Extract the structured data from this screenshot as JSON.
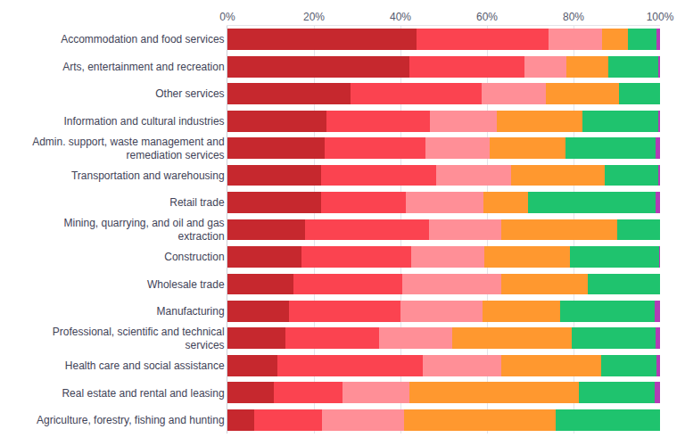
{
  "chart_data": {
    "type": "bar",
    "orientation": "horizontal",
    "stacked": true,
    "grid": true,
    "categories": [
      "Accommodation and food services",
      "Arts, entertainment and recreation",
      "Other services",
      "Information and cultural industries",
      "Admin. support, waste management and remediation services",
      "Transportation and warehousing",
      "Retail trade",
      "Mining, quarrying, and oil and gas extraction",
      "Construction",
      "Wholesale trade",
      "Manufacturing",
      "Professional, scientific and technical services",
      "Health care and social assistance",
      "Real estate and rental and leasing",
      "Agriculture, forestry, fishing and hunting"
    ],
    "xlim": [
      0,
      100
    ],
    "xticks": [
      {
        "value": 0,
        "label": "0%"
      },
      {
        "value": 20,
        "label": "20%"
      },
      {
        "value": 40,
        "label": "40%"
      },
      {
        "value": 60,
        "label": "60%"
      },
      {
        "value": 80,
        "label": "80%"
      },
      {
        "value": 100,
        "label": "100%"
      }
    ],
    "series": [
      {
        "color": "#c6282e",
        "values": [
          43.8,
          42.1,
          28.4,
          22.9,
          22.5,
          21.7,
          21.7,
          18.0,
          17.2,
          15.3,
          14.3,
          13.5,
          11.5,
          10.8,
          6.1
        ]
      },
      {
        "color": "#fb4350",
        "values": [
          30.4,
          26.5,
          30.3,
          23.9,
          23.3,
          26.6,
          19.6,
          28.6,
          25.3,
          25.2,
          25.8,
          21.5,
          33.7,
          15.8,
          15.8
        ]
      },
      {
        "color": "#ff8f97",
        "values": [
          12.5,
          9.7,
          14.9,
          15.4,
          14.9,
          17.3,
          17.8,
          16.8,
          16.8,
          22.7,
          18.8,
          16.9,
          18.2,
          15.5,
          19.0
        ]
      },
      {
        "color": "#ff982f",
        "values": [
          5.9,
          9.8,
          17.0,
          19.8,
          17.4,
          21.7,
          10.4,
          26.6,
          19.8,
          20.0,
          18.0,
          27.7,
          22.9,
          39.1,
          35.0
        ]
      },
      {
        "color": "#1fc36e",
        "values": [
          6.6,
          11.5,
          9.4,
          17.6,
          20.9,
          12.3,
          29.5,
          10.0,
          20.7,
          16.8,
          21.9,
          19.4,
          12.9,
          17.6,
          24.1
        ]
      },
      {
        "color": "#b23cb6",
        "values": [
          0.8,
          0.4,
          0,
          0.4,
          1.0,
          0.4,
          1.0,
          0,
          0.2,
          0,
          1.2,
          1.0,
          0.8,
          1.2,
          0
        ]
      }
    ]
  }
}
